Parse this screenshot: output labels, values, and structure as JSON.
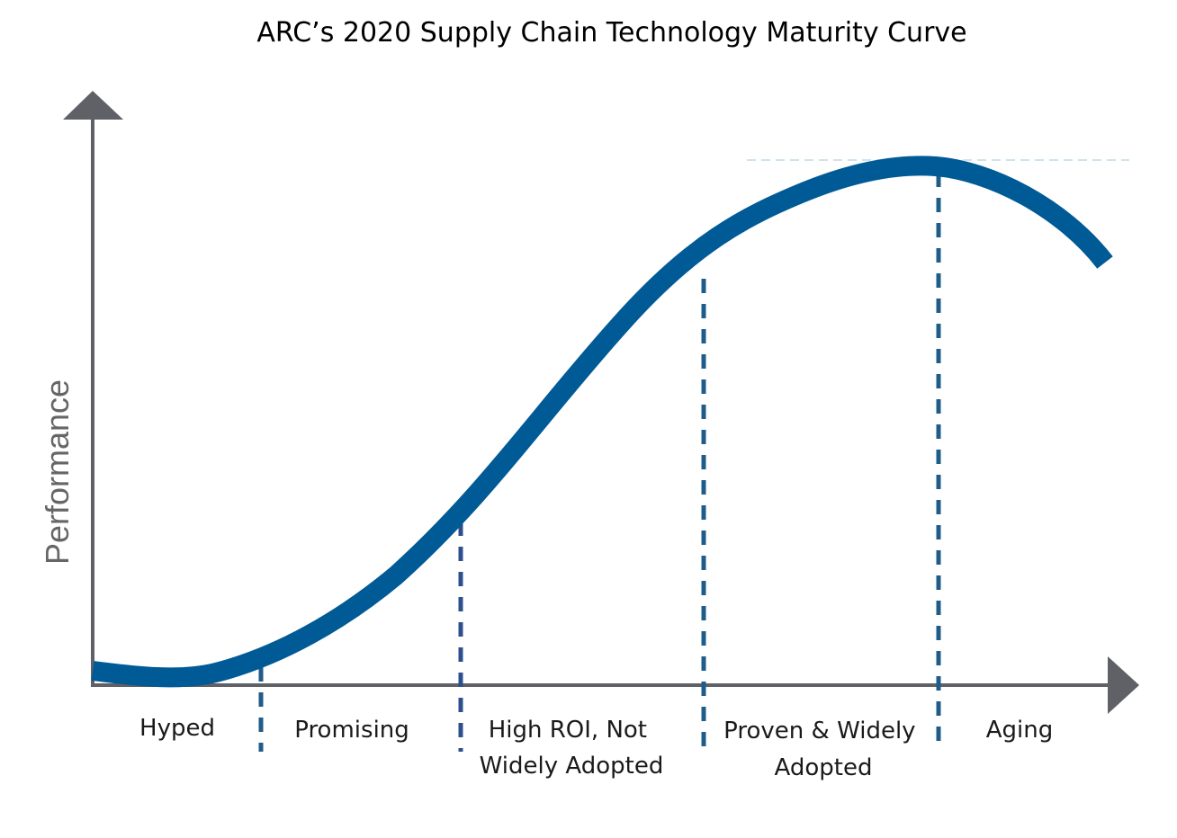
{
  "title": "ARC’s 2020 Supply Chain Technology Maturity Curve",
  "y_axis_label": "Performance",
  "phases": [
    {
      "lines": [
        "Hyped"
      ]
    },
    {
      "lines": [
        "Promising"
      ]
    },
    {
      "lines": [
        "High ROI, Not",
        "Widely Adopted"
      ]
    },
    {
      "lines": [
        "Proven & Widely",
        "Adopted"
      ]
    },
    {
      "lines": [
        "Aging"
      ]
    }
  ],
  "colors": {
    "curve": "#005a96",
    "divider": "#1f5c8a",
    "axis": "#5f6166",
    "axis_label": "#666666",
    "title": "#000000"
  }
}
